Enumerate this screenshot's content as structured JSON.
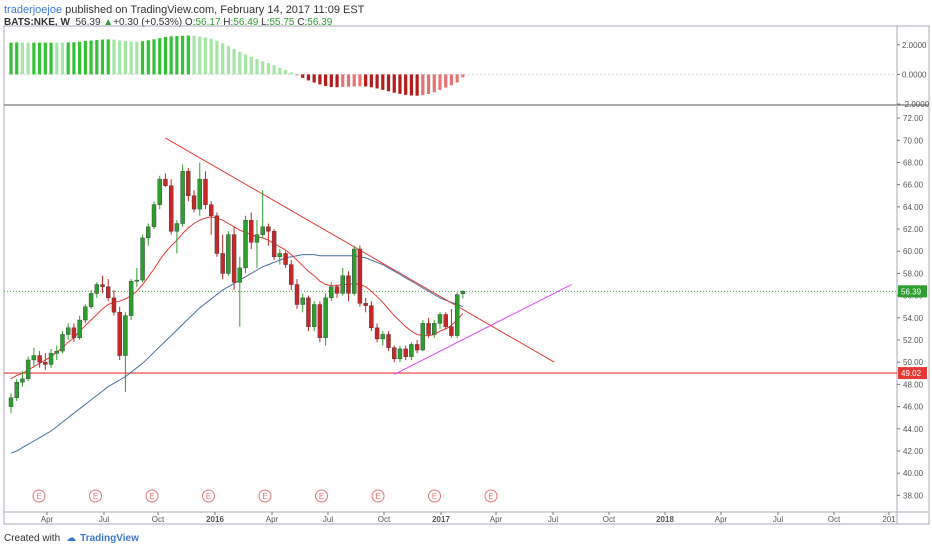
{
  "header": {
    "user": "traderjoejoe",
    "published_text": "published on TradingView.com, February 14, 2017 11:09 EST"
  },
  "symbol_line": {
    "ticker": "BATS:NKE, W",
    "last": "56.39",
    "change": "+0.30 (+0.53%)",
    "open_label": "O:",
    "open": "56.17",
    "high_label": "H:",
    "high": "56.49",
    "low_label": "L:",
    "low": "55.75",
    "close_label": "C:",
    "close": "56.39"
  },
  "footer": {
    "created_with": "Created with",
    "brand": "TradingView"
  },
  "colors": {
    "up_candle": "#2e9e2e",
    "down_candle": "#c62828",
    "ma_fast": "#e53935",
    "ma_slow": "#4a6fa5",
    "trendline": "#e53935",
    "support_line": "#e040fb",
    "level_line": "#e53935",
    "earnings": "#e57373",
    "osc_up_strong": "#33c233",
    "osc_up_weak": "#a5e6a5",
    "osc_down_strong": "#b71c1c",
    "osc_down_weak": "#e57373"
  },
  "chart_data": {
    "type": "candlestick",
    "ylim": [
      36.5,
      73
    ],
    "y_ticks": [
      "72.00",
      "70.00",
      "68.00",
      "66.00",
      "64.00",
      "62.00",
      "60.00",
      "58.00",
      "56.00",
      "54.00",
      "52.00",
      "50.00",
      "48.00",
      "46.00",
      "44.00",
      "42.00",
      "40.00",
      "38.00"
    ],
    "oscillator": {
      "ylim": [
        -2.0,
        3.0
      ],
      "ticks": [
        "2.0000",
        "0.0000",
        "-2.0000"
      ]
    },
    "x_ticks": [
      "Apr",
      "Jul",
      "Oct",
      "2016",
      "Apr",
      "Jul",
      "Oct",
      "2017",
      "Apr",
      "Jul",
      "Oct",
      "2018",
      "Apr",
      "Jul",
      "Oct",
      "201"
    ],
    "last_price_label": "56.39",
    "level_label": "49.02",
    "level_value": 49.02,
    "earnings_marker": "E",
    "earnings_count": 9,
    "candles": [
      [
        46,
        47.2,
        45.4,
        46.8
      ],
      [
        46.8,
        48.5,
        46.5,
        48.2
      ],
      [
        48.2,
        49.2,
        47.8,
        48.5
      ],
      [
        48.5,
        50.5,
        48.3,
        50.2
      ],
      [
        50.2,
        51.3,
        49.5,
        50.6
      ],
      [
        50.6,
        51,
        49.5,
        50
      ],
      [
        50,
        50.8,
        49.3,
        49.8
      ],
      [
        49.8,
        51.2,
        49.5,
        50.8
      ],
      [
        50.8,
        51.5,
        50.2,
        51
      ],
      [
        51,
        52.8,
        50.8,
        52.5
      ],
      [
        52.5,
        53.5,
        52,
        53.1
      ],
      [
        53.1,
        53.5,
        51.8,
        52.2
      ],
      [
        52.2,
        54.2,
        52,
        53.8
      ],
      [
        53.8,
        55.2,
        53.5,
        55
      ],
      [
        55,
        56.5,
        54.8,
        56.2
      ],
      [
        56.2,
        57.2,
        55.8,
        57
      ],
      [
        57,
        57.8,
        56.2,
        56.8
      ],
      [
        56.8,
        57.5,
        55.5,
        55.8
      ],
      [
        55.8,
        56.5,
        54.2,
        54.5
      ],
      [
        54.5,
        55,
        50.2,
        50.6
      ],
      [
        50.6,
        54.5,
        47.3,
        54.2
      ],
      [
        54.2,
        57.5,
        53.8,
        57.3
      ],
      [
        57.3,
        58.5,
        56.8,
        57.4
      ],
      [
        57.4,
        61.5,
        57.2,
        61.2
      ],
      [
        61.2,
        62.5,
        60.5,
        62.2
      ],
      [
        62.2,
        64.5,
        62,
        64.2
      ],
      [
        64.2,
        66.8,
        63.8,
        66.5
      ],
      [
        66.5,
        67,
        65.8,
        65.9
      ],
      [
        65.9,
        66.5,
        61.5,
        61.8
      ],
      [
        61.8,
        62.8,
        59.8,
        62.5
      ],
      [
        62.5,
        67.8,
        62.2,
        67.2
      ],
      [
        67.2,
        67.5,
        64.5,
        65
      ],
      [
        65,
        65.5,
        63.5,
        63.8
      ],
      [
        63.8,
        68,
        63.2,
        66.5
      ],
      [
        66.5,
        67.2,
        63.8,
        64.2
      ],
      [
        64.2,
        64.5,
        61.5,
        63.2
      ],
      [
        63.2,
        63.5,
        59.5,
        59.8
      ],
      [
        59.8,
        61.5,
        57.5,
        58
      ],
      [
        58,
        61.8,
        57.8,
        61.5
      ],
      [
        61.5,
        62.2,
        56.5,
        57.2
      ],
      [
        57.2,
        59.5,
        53.2,
        58.5
      ],
      [
        58.5,
        63.2,
        58,
        62.8
      ],
      [
        62.8,
        63.5,
        60.2,
        60.8
      ],
      [
        60.8,
        62.8,
        58.5,
        61.5
      ],
      [
        61.5,
        65.5,
        61.2,
        62.2
      ],
      [
        62.2,
        62.5,
        60.5,
        61.8
      ],
      [
        61.8,
        62,
        59.2,
        59.5
      ],
      [
        59.5,
        60.2,
        58.8,
        59.8
      ],
      [
        59.8,
        60,
        58.5,
        58.8
      ],
      [
        58.8,
        59.2,
        56.5,
        57
      ],
      [
        57,
        57.5,
        54.8,
        55.2
      ],
      [
        55.2,
        56.2,
        54.5,
        55.8
      ],
      [
        55.8,
        56,
        52.8,
        53.2
      ],
      [
        53.2,
        55.5,
        52.8,
        55.2
      ],
      [
        55.2,
        55.5,
        51.8,
        52.2
      ],
      [
        52.2,
        56.2,
        51.5,
        55.8
      ],
      [
        55.8,
        57.2,
        55.5,
        56.8
      ],
      [
        56.8,
        57,
        55.8,
        56.2
      ],
      [
        56.2,
        58.5,
        56,
        57.8
      ],
      [
        57.8,
        58.2,
        55.5,
        56.2
      ],
      [
        56.2,
        60.5,
        56,
        60.2
      ],
      [
        60.2,
        60.5,
        55,
        55.3
      ],
      [
        55.3,
        55.8,
        54.5,
        55.1
      ],
      [
        55.1,
        55.5,
        52.8,
        53.1
      ],
      [
        53.1,
        53.5,
        51.8,
        52.1
      ],
      [
        52.1,
        52.8,
        51.5,
        52.5
      ],
      [
        52.5,
        52.8,
        51,
        51.3
      ],
      [
        51.3,
        51.5,
        50,
        50.3
      ],
      [
        50.3,
        51.5,
        50,
        51.2
      ],
      [
        51.2,
        51.5,
        50.2,
        50.5
      ],
      [
        50.5,
        51.8,
        50.2,
        51.6
      ],
      [
        51.6,
        52,
        50.8,
        51.1
      ],
      [
        51.1,
        53.8,
        51,
        53.5
      ],
      [
        53.5,
        54,
        52.2,
        52.5
      ],
      [
        52.5,
        53.8,
        52.2,
        53.5
      ],
      [
        53.5,
        54.5,
        53,
        54.3
      ],
      [
        54.3,
        54.5,
        53,
        53.2
      ],
      [
        53.2,
        54.8,
        52.2,
        52.4
      ],
      [
        52.4,
        56.3,
        52.2,
        56.09
      ],
      [
        56.17,
        56.49,
        55.75,
        56.39
      ]
    ],
    "ma_fast": [
      48.5,
      48.8,
      49,
      49.3,
      49.6,
      49.9,
      50.2,
      50.5,
      50.9,
      51.3,
      51.8,
      52.2,
      52.8,
      53.3,
      53.8,
      54.3,
      54.8,
      55.2,
      55.4,
      55.5,
      55.7,
      56,
      56.4,
      57,
      57.7,
      58.4,
      59.2,
      59.9,
      60.5,
      61,
      61.6,
      62.1,
      62.5,
      62.8,
      63,
      63.1,
      63,
      62.8,
      62.5,
      62.2,
      61.9,
      61.7,
      61.5,
      61.3,
      61.2,
      61,
      60.7,
      60.4,
      60.1,
      59.7,
      59.2,
      58.7,
      58.2,
      57.8,
      57.3,
      57,
      56.9,
      56.9,
      57,
      57,
      57.1,
      57,
      56.8,
      56.4,
      55.9,
      55.4,
      54.8,
      54.2,
      53.7,
      53.2,
      52.8,
      52.5,
      52.4,
      52.4,
      52.5,
      52.8,
      53,
      53.3,
      53.8,
      54.4
    ],
    "ma_slow": [
      41.8,
      42,
      42.3,
      42.6,
      42.9,
      43.2,
      43.5,
      43.8,
      44.2,
      44.6,
      45,
      45.4,
      45.8,
      46.2,
      46.6,
      47,
      47.4,
      47.8,
      48.1,
      48.4,
      48.7,
      49.1,
      49.5,
      49.9,
      50.4,
      50.9,
      51.4,
      51.9,
      52.4,
      52.9,
      53.4,
      53.9,
      54.4,
      54.9,
      55.3,
      55.7,
      56.1,
      56.5,
      56.8,
      57.1,
      57.4,
      57.7,
      58,
      58.3,
      58.6,
      58.8,
      59,
      59.2,
      59.4,
      59.5,
      59.6,
      59.7,
      59.7,
      59.7,
      59.6,
      59.6,
      59.6,
      59.6,
      59.6,
      59.6,
      59.6,
      59.5,
      59.4,
      59.2,
      59,
      58.8,
      58.5,
      58.2,
      57.9,
      57.6,
      57.3,
      57,
      56.7,
      56.4,
      56.1,
      55.8,
      55.6,
      55.4,
      55.2,
      55
    ]
  }
}
